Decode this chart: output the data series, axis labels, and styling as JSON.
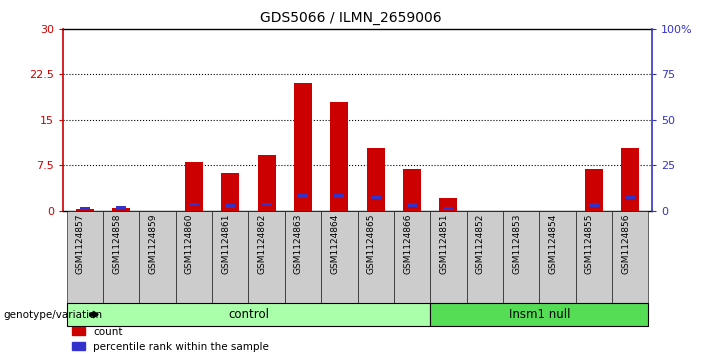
{
  "title": "GDS5066 / ILMN_2659006",
  "samples": [
    "GSM1124857",
    "GSM1124858",
    "GSM1124859",
    "GSM1124860",
    "GSM1124861",
    "GSM1124862",
    "GSM1124863",
    "GSM1124864",
    "GSM1124865",
    "GSM1124866",
    "GSM1124851",
    "GSM1124852",
    "GSM1124853",
    "GSM1124854",
    "GSM1124855",
    "GSM1124856"
  ],
  "count_values": [
    0.2,
    0.5,
    0.0,
    8.0,
    6.2,
    9.2,
    21.0,
    18.0,
    10.3,
    6.8,
    2.0,
    0.0,
    0.0,
    0.0,
    6.8,
    10.3
  ],
  "percentile_values": [
    1.0,
    1.5,
    0.0,
    3.2,
    2.5,
    3.5,
    8.0,
    8.0,
    7.2,
    3.0,
    1.0,
    0.0,
    0.0,
    0.0,
    3.0,
    7.0
  ],
  "count_color": "#cc0000",
  "percentile_color": "#3333cc",
  "ylim_left": [
    0,
    30
  ],
  "ylim_right": [
    0,
    100
  ],
  "yticks_left": [
    0,
    7.5,
    15,
    22.5,
    30
  ],
  "yticks_right": [
    0,
    25,
    50,
    75,
    100
  ],
  "ytick_labels_left": [
    "0",
    "7.5",
    "15",
    "22.5",
    "30"
  ],
  "ytick_labels_right": [
    "0",
    "25",
    "50",
    "75",
    "100%"
  ],
  "control_indices": [
    0,
    1,
    2,
    3,
    4,
    5,
    6,
    7,
    8,
    9
  ],
  "insm1_indices": [
    10,
    11,
    12,
    13,
    14,
    15
  ],
  "control_label": "control",
  "insm1_label": "Insm1 null",
  "control_color": "#aaffaa",
  "insm1_color": "#55dd55",
  "group_label": "genotype/variation",
  "bg_color": "#cccccc",
  "plot_bg": "#ffffff",
  "legend_count": "count",
  "legend_pct": "percentile rank within the sample",
  "bar_width": 0.5
}
